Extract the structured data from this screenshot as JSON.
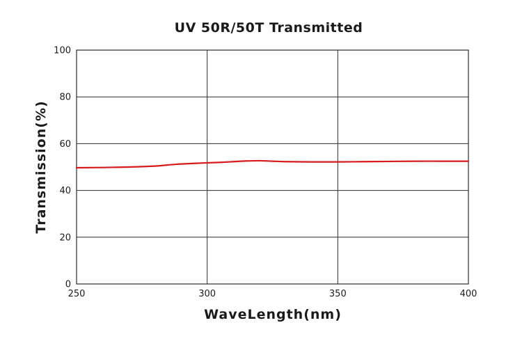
{
  "chart_data": {
    "type": "line",
    "title": "UV 50R/50T Transmitted",
    "xlabel": "WaveLength(nm)",
    "ylabel": "Transmission(%)",
    "xlim": [
      250,
      400
    ],
    "ylim": [
      0,
      100
    ],
    "x_ticks": [
      250,
      300,
      350,
      400
    ],
    "y_ticks": [
      0,
      20,
      40,
      60,
      80,
      100
    ],
    "grid": true,
    "legend": "none",
    "series": [
      {
        "color": "#d7191c",
        "x": [
          250,
          260,
          265,
          270,
          280,
          285,
          290,
          300,
          305,
          310,
          315,
          320,
          325,
          330,
          340,
          350,
          360,
          370,
          380,
          390,
          400
        ],
        "y": [
          49.7,
          49.8,
          49.9,
          50.0,
          50.4,
          50.9,
          51.3,
          51.8,
          52.0,
          52.3,
          52.6,
          52.7,
          52.5,
          52.3,
          52.2,
          52.2,
          52.3,
          52.4,
          52.5,
          52.5,
          52.5
        ]
      }
    ]
  }
}
